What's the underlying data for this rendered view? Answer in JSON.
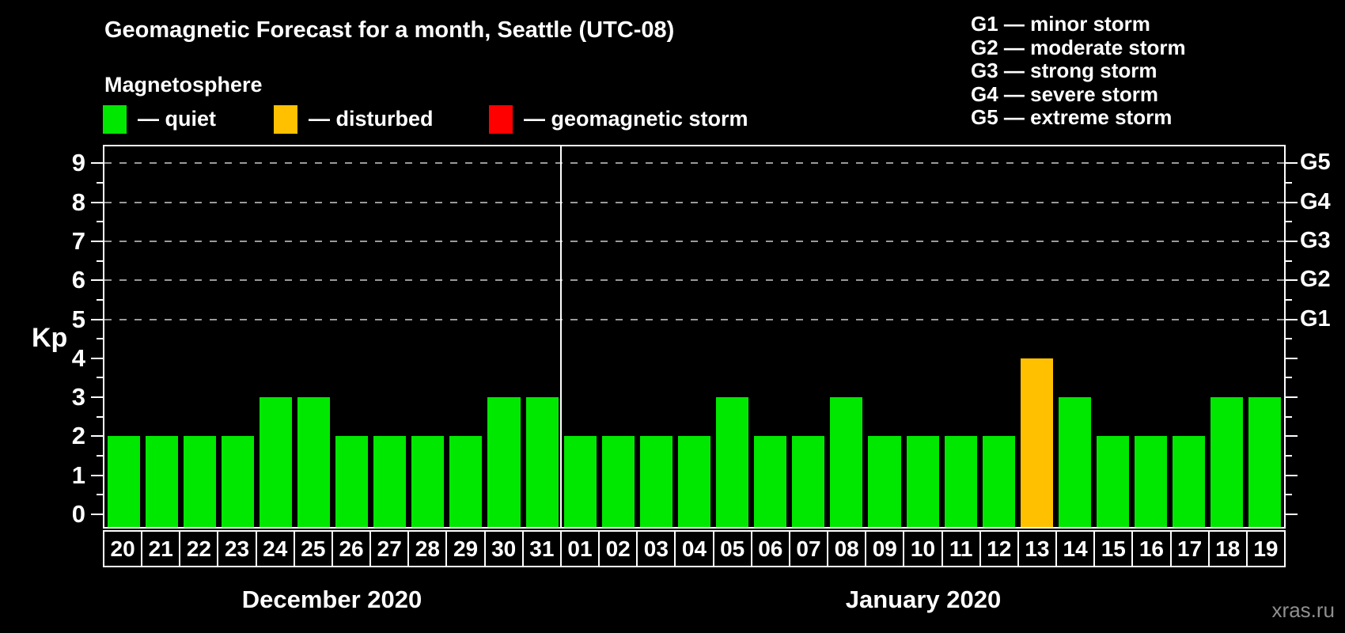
{
  "title": "Geomagnetic Forecast for a month, Seattle (UTC-08)",
  "magnetosphere": {
    "heading": "Magnetosphere",
    "legend": [
      {
        "status": "quiet",
        "label": "— quiet"
      },
      {
        "status": "disturbed",
        "label": "— disturbed"
      },
      {
        "status": "storm",
        "label": "— geomagnetic storm"
      }
    ]
  },
  "colors": {
    "quiet": "#00E800",
    "disturbed": "#FFC000",
    "storm": "#FF0000"
  },
  "g_scale_legend": [
    "G1 — minor storm",
    "G2 — moderate storm",
    "G3 — strong storm",
    "G4 — severe storm",
    "G5 — extreme storm"
  ],
  "watermark": "xras.ru",
  "chart_data": {
    "type": "bar",
    "title": "Geomagnetic Forecast for a month, Seattle (UTC-08)",
    "ylabel": "Kp",
    "ylim": [
      0,
      9
    ],
    "y_ticks": [
      0,
      1,
      2,
      3,
      4,
      5,
      6,
      7,
      8,
      9
    ],
    "grid": "horizontal dashed gridlines at Kp 5,6,7,8,9",
    "legend_position": "top",
    "right_axis": [
      {
        "label": "G1",
        "kp": 5
      },
      {
        "label": "G2",
        "kp": 6
      },
      {
        "label": "G3",
        "kp": 7
      },
      {
        "label": "G4",
        "kp": 8
      },
      {
        "label": "G5",
        "kp": 9
      }
    ],
    "months": [
      {
        "label": "December 2020",
        "days": [
          {
            "day": "20",
            "kp": 2,
            "status": "quiet"
          },
          {
            "day": "21",
            "kp": 2,
            "status": "quiet"
          },
          {
            "day": "22",
            "kp": 2,
            "status": "quiet"
          },
          {
            "day": "23",
            "kp": 2,
            "status": "quiet"
          },
          {
            "day": "24",
            "kp": 3,
            "status": "quiet"
          },
          {
            "day": "25",
            "kp": 3,
            "status": "quiet"
          },
          {
            "day": "26",
            "kp": 2,
            "status": "quiet"
          },
          {
            "day": "27",
            "kp": 2,
            "status": "quiet"
          },
          {
            "day": "28",
            "kp": 2,
            "status": "quiet"
          },
          {
            "day": "29",
            "kp": 2,
            "status": "quiet"
          },
          {
            "day": "30",
            "kp": 3,
            "status": "quiet"
          },
          {
            "day": "31",
            "kp": 3,
            "status": "quiet"
          }
        ]
      },
      {
        "label": "January 2020",
        "days": [
          {
            "day": "01",
            "kp": 2,
            "status": "quiet"
          },
          {
            "day": "02",
            "kp": 2,
            "status": "quiet"
          },
          {
            "day": "03",
            "kp": 2,
            "status": "quiet"
          },
          {
            "day": "04",
            "kp": 2,
            "status": "quiet"
          },
          {
            "day": "05",
            "kp": 3,
            "status": "quiet"
          },
          {
            "day": "06",
            "kp": 2,
            "status": "quiet"
          },
          {
            "day": "07",
            "kp": 2,
            "status": "quiet"
          },
          {
            "day": "08",
            "kp": 3,
            "status": "quiet"
          },
          {
            "day": "09",
            "kp": 2,
            "status": "quiet"
          },
          {
            "day": "10",
            "kp": 2,
            "status": "quiet"
          },
          {
            "day": "11",
            "kp": 2,
            "status": "quiet"
          },
          {
            "day": "12",
            "kp": 2,
            "status": "quiet"
          },
          {
            "day": "13",
            "kp": 4,
            "status": "disturbed"
          },
          {
            "day": "14",
            "kp": 3,
            "status": "quiet"
          },
          {
            "day": "15",
            "kp": 2,
            "status": "quiet"
          },
          {
            "day": "16",
            "kp": 2,
            "status": "quiet"
          },
          {
            "day": "17",
            "kp": 2,
            "status": "quiet"
          },
          {
            "day": "18",
            "kp": 3,
            "status": "quiet"
          },
          {
            "day": "19",
            "kp": 3,
            "status": "quiet"
          }
        ]
      }
    ]
  }
}
